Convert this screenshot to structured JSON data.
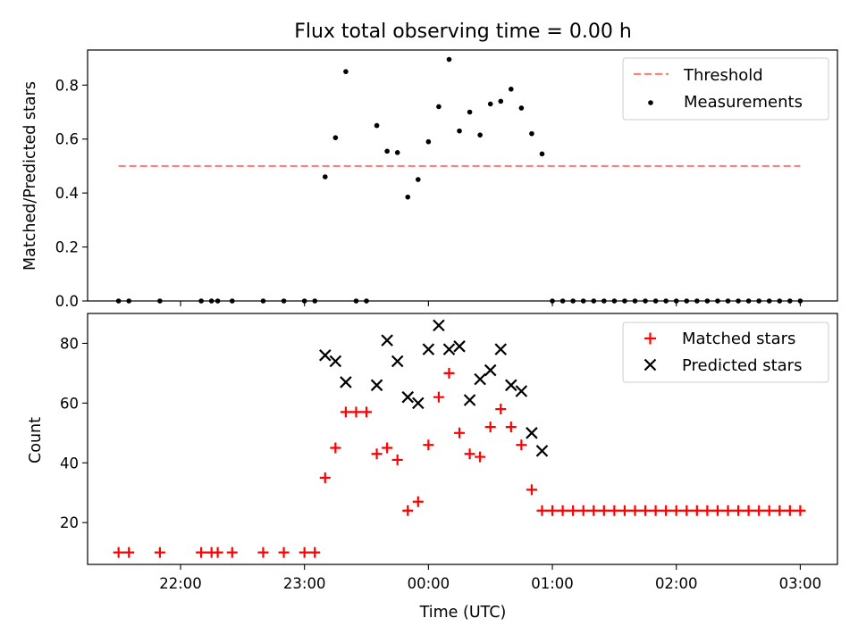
{
  "figure": {
    "title": "Flux total observing time = 0.00 h"
  },
  "chart_data": [
    {
      "type": "scatter",
      "ylabel": "Matched/Predicted stars",
      "xlabel": "",
      "xlim": [
        "21:15",
        "03:18"
      ],
      "ylim": [
        0,
        0.93
      ],
      "yticks": [
        0.0,
        0.2,
        0.4,
        0.6,
        0.8
      ],
      "ytick_labels": [
        "0.0",
        "0.2",
        "0.4",
        "0.6",
        "0.8"
      ],
      "xticks": [
        "22:00",
        "23:00",
        "00:00",
        "01:00",
        "02:00",
        "03:00"
      ],
      "show_xtick_labels": false,
      "legend": "top-right",
      "threshold": {
        "name": "Threshold",
        "value": 0.5,
        "x_range": [
          "21:30",
          "03:00"
        ],
        "color": "#ff7f7f",
        "style": "dashed"
      },
      "series": [
        {
          "name": "Measurements",
          "marker": "dot",
          "color": "#000000",
          "points": [
            [
              "21:30",
              0.0
            ],
            [
              "21:35",
              0.0
            ],
            [
              "21:50",
              0.0
            ],
            [
              "22:10",
              0.0
            ],
            [
              "22:15",
              0.0
            ],
            [
              "22:18",
              0.0
            ],
            [
              "22:25",
              0.0
            ],
            [
              "22:40",
              0.0
            ],
            [
              "22:50",
              0.0
            ],
            [
              "23:00",
              0.0
            ],
            [
              "23:05",
              0.0
            ],
            [
              "23:10",
              0.46
            ],
            [
              "23:15",
              0.605
            ],
            [
              "23:20",
              0.85
            ],
            [
              "23:25",
              0.0
            ],
            [
              "23:30",
              0.0
            ],
            [
              "23:35",
              0.65
            ],
            [
              "23:40",
              0.555
            ],
            [
              "23:45",
              0.55
            ],
            [
              "23:50",
              0.385
            ],
            [
              "23:55",
              0.45
            ],
            [
              "00:00",
              0.59
            ],
            [
              "00:05",
              0.72
            ],
            [
              "00:10",
              0.895
            ],
            [
              "00:15",
              0.63
            ],
            [
              "00:20",
              0.7
            ],
            [
              "00:25",
              0.615
            ],
            [
              "00:30",
              0.73
            ],
            [
              "00:35",
              0.74
            ],
            [
              "00:40",
              0.785
            ],
            [
              "00:45",
              0.715
            ],
            [
              "00:50",
              0.62
            ],
            [
              "00:55",
              0.545
            ],
            [
              "01:00",
              0.0
            ],
            [
              "01:05",
              0.0
            ],
            [
              "01:10",
              0.0
            ],
            [
              "01:15",
              0.0
            ],
            [
              "01:20",
              0.0
            ],
            [
              "01:25",
              0.0
            ],
            [
              "01:30",
              0.0
            ],
            [
              "01:35",
              0.0
            ],
            [
              "01:40",
              0.0
            ],
            [
              "01:45",
              0.0
            ],
            [
              "01:50",
              0.0
            ],
            [
              "01:55",
              0.0
            ],
            [
              "02:00",
              0.0
            ],
            [
              "02:05",
              0.0
            ],
            [
              "02:10",
              0.0
            ],
            [
              "02:15",
              0.0
            ],
            [
              "02:20",
              0.0
            ],
            [
              "02:25",
              0.0
            ],
            [
              "02:30",
              0.0
            ],
            [
              "02:35",
              0.0
            ],
            [
              "02:40",
              0.0
            ],
            [
              "02:45",
              0.0
            ],
            [
              "02:50",
              0.0
            ],
            [
              "02:55",
              0.0
            ],
            [
              "03:00",
              0.0
            ]
          ]
        }
      ]
    },
    {
      "type": "scatter",
      "ylabel": "Count",
      "xlabel": "Time (UTC)",
      "xlim": [
        "21:15",
        "03:18"
      ],
      "ylim": [
        6,
        90
      ],
      "yticks": [
        20,
        40,
        60,
        80
      ],
      "ytick_labels": [
        "20",
        "40",
        "60",
        "80"
      ],
      "xticks": [
        "22:00",
        "23:00",
        "00:00",
        "01:00",
        "02:00",
        "03:00"
      ],
      "xtick_labels": [
        "22:00",
        "23:00",
        "00:00",
        "01:00",
        "02:00",
        "03:00"
      ],
      "legend": "top-right",
      "series": [
        {
          "name": "Matched stars",
          "marker": "plus",
          "color": "#ff0000",
          "points": [
            [
              "21:30",
              10
            ],
            [
              "21:35",
              10
            ],
            [
              "21:50",
              10
            ],
            [
              "22:10",
              10
            ],
            [
              "22:15",
              10
            ],
            [
              "22:18",
              10
            ],
            [
              "22:25",
              10
            ],
            [
              "22:40",
              10
            ],
            [
              "22:50",
              10
            ],
            [
              "23:00",
              10
            ],
            [
              "23:05",
              10
            ],
            [
              "23:10",
              35
            ],
            [
              "23:15",
              45
            ],
            [
              "23:20",
              57
            ],
            [
              "23:25",
              57
            ],
            [
              "23:30",
              57
            ],
            [
              "23:35",
              43
            ],
            [
              "23:40",
              45
            ],
            [
              "23:45",
              41
            ],
            [
              "23:50",
              24
            ],
            [
              "23:55",
              27
            ],
            [
              "00:00",
              46
            ],
            [
              "00:05",
              62
            ],
            [
              "00:10",
              70
            ],
            [
              "00:15",
              50
            ],
            [
              "00:20",
              43
            ],
            [
              "00:25",
              42
            ],
            [
              "00:30",
              52
            ],
            [
              "00:35",
              58
            ],
            [
              "00:40",
              52
            ],
            [
              "00:45",
              46
            ],
            [
              "00:50",
              31
            ],
            [
              "00:55",
              24
            ],
            [
              "01:00",
              24
            ],
            [
              "01:05",
              24
            ],
            [
              "01:10",
              24
            ],
            [
              "01:15",
              24
            ],
            [
              "01:20",
              24
            ],
            [
              "01:25",
              24
            ],
            [
              "01:30",
              24
            ],
            [
              "01:35",
              24
            ],
            [
              "01:40",
              24
            ],
            [
              "01:45",
              24
            ],
            [
              "01:50",
              24
            ],
            [
              "01:55",
              24
            ],
            [
              "02:00",
              24
            ],
            [
              "02:05",
              24
            ],
            [
              "02:10",
              24
            ],
            [
              "02:15",
              24
            ],
            [
              "02:20",
              24
            ],
            [
              "02:25",
              24
            ],
            [
              "02:30",
              24
            ],
            [
              "02:35",
              24
            ],
            [
              "02:40",
              24
            ],
            [
              "02:45",
              24
            ],
            [
              "02:50",
              24
            ],
            [
              "02:55",
              24
            ],
            [
              "03:00",
              24
            ]
          ]
        },
        {
          "name": "Predicted stars",
          "marker": "x",
          "color": "#000000",
          "points": [
            [
              "23:10",
              76
            ],
            [
              "23:15",
              74
            ],
            [
              "23:20",
              67
            ],
            [
              "23:35",
              66
            ],
            [
              "23:40",
              81
            ],
            [
              "23:45",
              74
            ],
            [
              "23:50",
              62
            ],
            [
              "23:55",
              60
            ],
            [
              "00:00",
              78
            ],
            [
              "00:05",
              86
            ],
            [
              "00:10",
              78
            ],
            [
              "00:15",
              79
            ],
            [
              "00:20",
              61
            ],
            [
              "00:25",
              68
            ],
            [
              "00:30",
              71
            ],
            [
              "00:35",
              78
            ],
            [
              "00:40",
              66
            ],
            [
              "00:45",
              64
            ],
            [
              "00:50",
              50
            ],
            [
              "00:55",
              44
            ]
          ]
        }
      ]
    }
  ]
}
